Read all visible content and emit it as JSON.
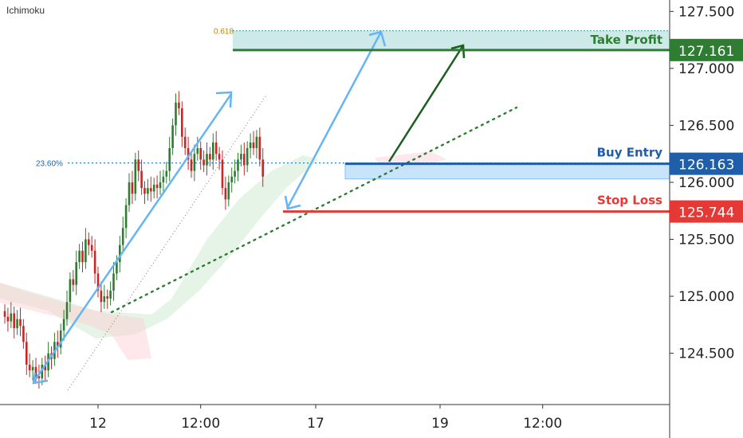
{
  "indicator_label": "Ichimoku",
  "colors": {
    "bull": "#2e7d32",
    "bear": "#c62828",
    "take_profit": "#2e7d32",
    "buy_entry": "#1f5ea8",
    "stop_loss": "#e53935",
    "arrow_blue": "#64b5f6",
    "fib_text": "#b8860b",
    "cloud_green": "#c8e6c9",
    "cloud_red": "#ffcdd2",
    "trendline": "#2e7d32"
  },
  "levels": {
    "take_profit": {
      "label": "Take Profit",
      "price": 127.161,
      "price_text": "127.161"
    },
    "buy_entry": {
      "label": "Buy Entry",
      "price": 126.163,
      "price_text": "126.163"
    },
    "stop_loss": {
      "label": "Stop Loss",
      "price": 125.744,
      "price_text": "125.744"
    },
    "fib_618": {
      "label": "0.618",
      "price": 127.33
    },
    "fib_236": {
      "label": "23.60%",
      "price": 126.17
    }
  },
  "chart_data": {
    "type": "line",
    "subtype": "candlestick-with-annotations",
    "y_axis": {
      "range": [
        124.05,
        127.6
      ],
      "ticks": [
        "124.500",
        "125.000",
        "125.500",
        "126.000",
        "126.500",
        "127.000",
        "127.500"
      ],
      "tick_values": [
        124.5,
        125.0,
        125.5,
        126.0,
        126.5,
        127.0,
        127.5
      ]
    },
    "x_axis": {
      "ticks": [
        {
          "label": "12",
          "bar": 30
        },
        {
          "label": "12:00",
          "bar": 63
        },
        {
          "label": "17",
          "bar": 100
        },
        {
          "label": "19",
          "bar": 140
        },
        {
          "label": "12:00",
          "bar": 173
        }
      ]
    },
    "closes": [
      124.82,
      124.78,
      124.85,
      124.72,
      124.8,
      124.74,
      124.6,
      124.4,
      124.35,
      124.38,
      124.3,
      124.28,
      124.4,
      124.35,
      124.5,
      124.45,
      124.6,
      124.55,
      124.7,
      124.8,
      124.95,
      125.15,
      125.1,
      125.3,
      125.4,
      125.3,
      125.5,
      125.45,
      125.4,
      125.2,
      125.05,
      124.95,
      125.0,
      124.98,
      125.05,
      125.2,
      125.3,
      125.45,
      125.6,
      125.8,
      126.0,
      125.9,
      126.2,
      126.1,
      125.95,
      125.9,
      125.95,
      125.92,
      125.98,
      125.95,
      126.0,
      126.05,
      126.1,
      126.3,
      126.5,
      126.7,
      126.65,
      126.4,
      126.3,
      126.2,
      126.1,
      126.25,
      126.3,
      126.2,
      126.15,
      126.25,
      126.2,
      126.35,
      126.25,
      126.2,
      125.95,
      125.85,
      126.0,
      126.05,
      126.1,
      126.2,
      126.25,
      126.15,
      126.3,
      126.35,
      126.3,
      126.4,
      126.2,
      126.05
    ],
    "series": [
      {
        "name": "",
        "type": "candlestick",
        "values_ref": "closes"
      }
    ]
  }
}
